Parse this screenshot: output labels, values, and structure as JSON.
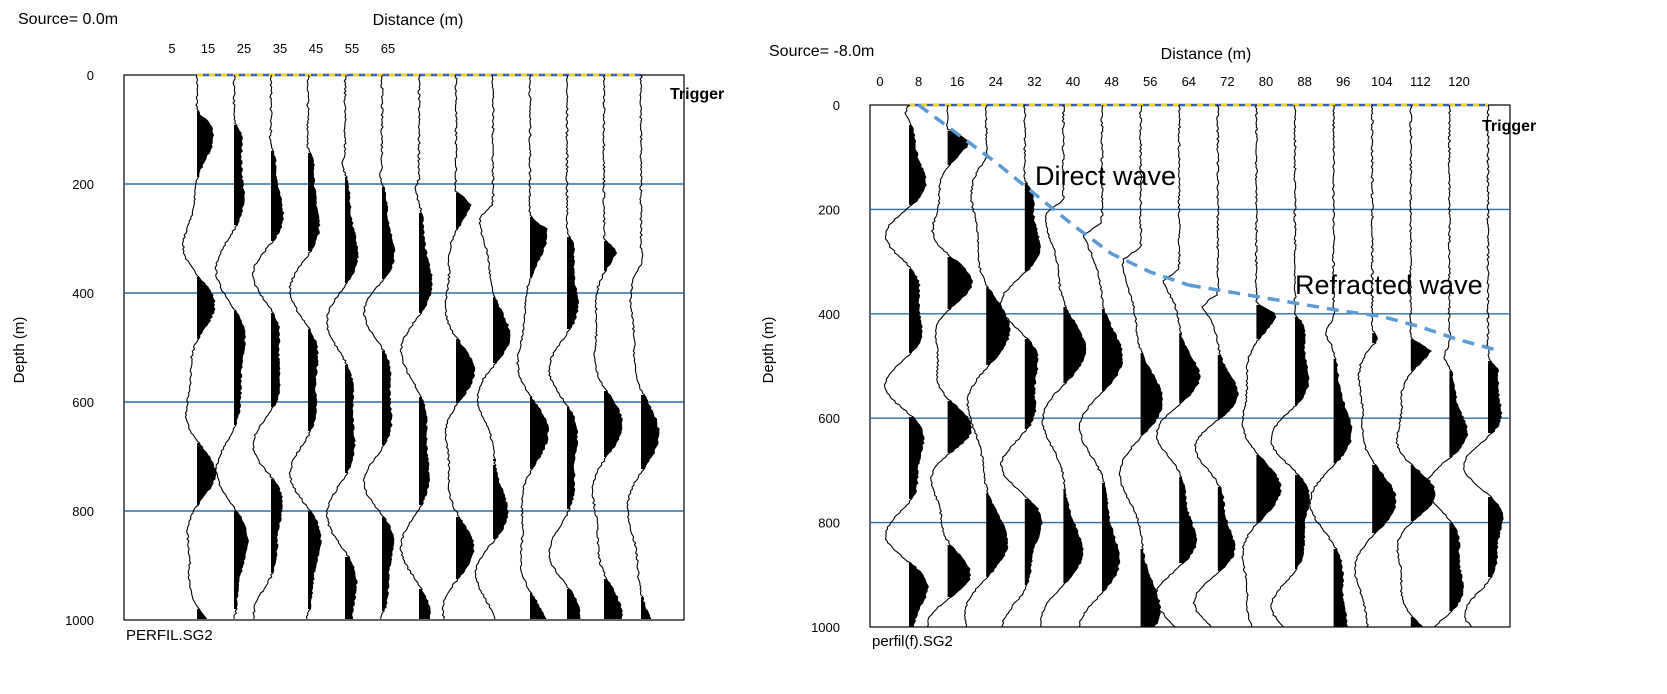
{
  "chart_data": [
    {
      "type": "seismogram",
      "source_label": "Source= 0.0m",
      "xlabel": "Distance (m)",
      "ylabel": "Depth (m)",
      "xticks": [
        5,
        15,
        25,
        35,
        45,
        55,
        65
      ],
      "yticks": [
        0,
        200,
        400,
        600,
        800,
        1000
      ],
      "ylim": [
        0,
        1000
      ],
      "grid_rows": [
        200,
        400,
        600,
        800
      ],
      "trigger_label": "Trigger",
      "file_label": "PERFIL.SG2",
      "trace_count": 13,
      "line_color": "#000000",
      "grid_color": "#2e6da4",
      "trigger_colors": [
        "#f2d21b",
        "#3c5fb0"
      ]
    },
    {
      "type": "seismogram",
      "source_label": "Source= -8.0m",
      "xlabel": "Distance (m)",
      "ylabel": "Depth (m)",
      "xticks": [
        0,
        8,
        16,
        24,
        32,
        40,
        48,
        56,
        64,
        72,
        80,
        88,
        96,
        104,
        112,
        120
      ],
      "yticks": [
        0,
        200,
        400,
        600,
        800,
        1000
      ],
      "ylim": [
        0,
        1000
      ],
      "grid_rows": [
        200,
        400,
        600,
        800
      ],
      "trigger_label": "Trigger",
      "file_label": "perfil(f).SG2",
      "trace_count": 16,
      "line_color": "#000000",
      "grid_color": "#2e6da4",
      "trigger_colors": [
        "#f2d21b",
        "#3c5fb0"
      ],
      "annotations": [
        {
          "text": "Direct wave"
        },
        {
          "text": "Refracted wave"
        }
      ],
      "picks": {
        "direct": [
          [
            8,
            0
          ],
          [
            16,
            55
          ],
          [
            24,
            110
          ],
          [
            32,
            170
          ],
          [
            40,
            230
          ],
          [
            48,
            285
          ],
          [
            56,
            320
          ],
          [
            64,
            345
          ]
        ],
        "refracted": [
          [
            64,
            345
          ],
          [
            80,
            370
          ],
          [
            96,
            395
          ],
          [
            104,
            405
          ],
          [
            112,
            425
          ],
          [
            120,
            450
          ],
          [
            128,
            470
          ]
        ],
        "color": "#5b9bd5"
      }
    }
  ]
}
